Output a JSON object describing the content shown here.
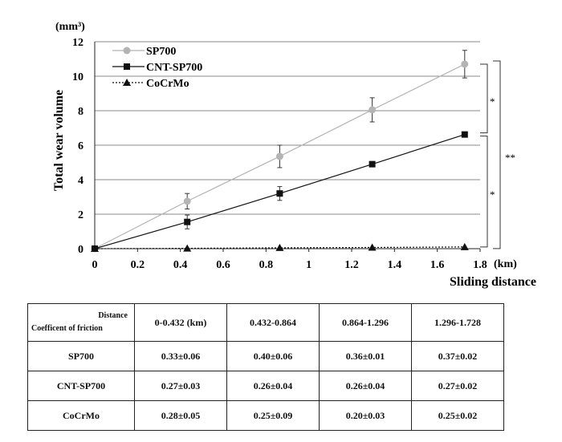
{
  "chart_data": {
    "type": "line",
    "unit_label": "(mm³)",
    "ylabel": "Total wear volume",
    "xlabel": "Sliding distance",
    "x_unit": "(km)",
    "xlim": [
      0,
      1.8
    ],
    "ylim": [
      0,
      12
    ],
    "x_ticks": [
      "0",
      "0.2",
      "0.4",
      "0.6",
      "0.8",
      "1",
      "1.2",
      "1.4",
      "1.6",
      "1.8"
    ],
    "y_ticks": [
      "0",
      "2",
      "4",
      "6",
      "8",
      "10",
      "12"
    ],
    "grid": "horizontal",
    "legend_position": "top-left",
    "x": [
      0,
      0.432,
      0.864,
      1.296,
      1.728
    ],
    "series": [
      {
        "name": "SP700",
        "marker": "circle",
        "color": "#b4b4b4",
        "values": [
          0,
          2.75,
          5.35,
          8.05,
          10.7
        ],
        "errors": [
          0,
          0.45,
          0.65,
          0.7,
          0.8
        ]
      },
      {
        "name": "CNT-SP700",
        "marker": "square",
        "color": "#111111",
        "values": [
          0,
          1.55,
          3.2,
          4.9,
          6.62
        ],
        "errors": [
          0,
          0.4,
          0.4,
          0,
          0
        ]
      },
      {
        "name": "CoCrMo",
        "marker": "triangle",
        "color": "#111111",
        "values": [
          0,
          0.02,
          0.05,
          0.07,
          0.1
        ],
        "errors": [
          0,
          0,
          0,
          0,
          0
        ]
      }
    ],
    "significance": [
      {
        "label": "*",
        "from": 10.7,
        "to": 6.62
      },
      {
        "label": "*",
        "from": 6.62,
        "to": 0.1
      },
      {
        "label": "**",
        "from": 10.7,
        "to": 0.1
      }
    ]
  },
  "friction_table": {
    "corner_top": "Distance",
    "corner_bottom": "Coefficent of friction",
    "columns": [
      "0-0.432 (km)",
      "0.432-0.864",
      "0.864-1.296",
      "1.296-1.728"
    ],
    "rows": [
      {
        "label": "SP700",
        "values": [
          "0.33±0.06",
          "0.40±0.06",
          "0.36±0.01",
          "0.37±0.02"
        ]
      },
      {
        "label": "CNT-SP700",
        "values": [
          "0.27±0.03",
          "0.26±0.04",
          "0.26±0.04",
          "0.27±0.02"
        ]
      },
      {
        "label": "CoCrMo",
        "values": [
          "0.28±0.05",
          "0.25±0.09",
          "0.20±0.03",
          "0.25±0.02"
        ]
      }
    ]
  }
}
